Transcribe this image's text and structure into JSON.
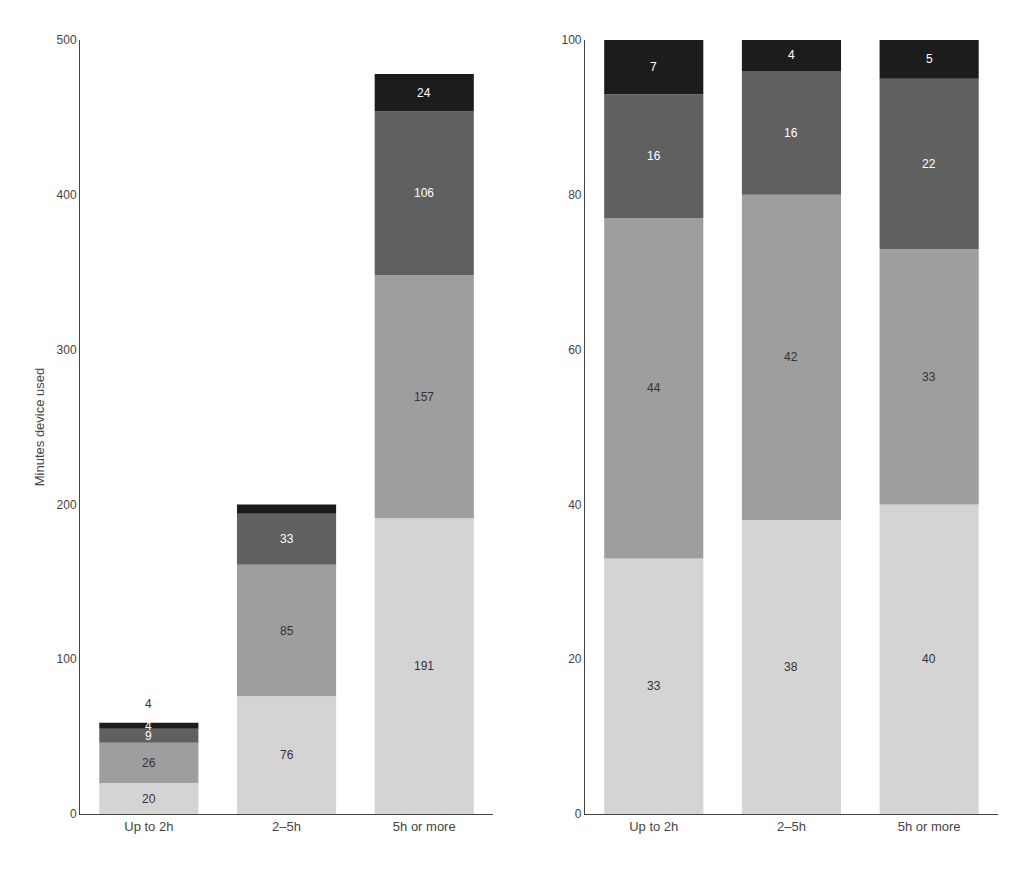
{
  "chart_data": [
    {
      "type": "bar",
      "stacked": true,
      "categories": [
        "Up to 2h",
        "2–5h",
        "5h or more"
      ],
      "series": [
        {
          "color": "#d4d4d4",
          "values": [
            20,
            76,
            191
          ]
        },
        {
          "color": "#9e9e9e",
          "values": [
            26,
            85,
            157
          ]
        },
        {
          "color": "#606060",
          "values": [
            9,
            33,
            106
          ]
        },
        {
          "color": "#1c1c1c",
          "values": [
            4,
            6,
            24
          ],
          "value_labels": [
            "4",
            null,
            "24"
          ]
        }
      ],
      "ylabel": "Minutes device used",
      "ylim": [
        0,
        500
      ],
      "yticks": [
        0,
        100,
        200,
        300,
        400,
        500
      ],
      "grid": false,
      "data_labels": true,
      "annotations": [
        {
          "text": "4",
          "category": "Up to 2h"
        }
      ]
    },
    {
      "type": "bar",
      "stacked": true,
      "categories": [
        "Up to 2h",
        "2–5h",
        "5h or more"
      ],
      "series": [
        {
          "color": "#d4d4d4",
          "values": [
            33,
            38,
            40
          ]
        },
        {
          "color": "#9e9e9e",
          "values": [
            44,
            42,
            33
          ]
        },
        {
          "color": "#606060",
          "values": [
            16,
            16,
            22
          ]
        },
        {
          "color": "#1c1c1c",
          "values": [
            7,
            4,
            5
          ]
        }
      ],
      "ylim": [
        0,
        100
      ],
      "yticks": [
        0,
        20,
        40,
        60,
        80,
        100
      ],
      "grid": false,
      "data_labels": true
    }
  ]
}
